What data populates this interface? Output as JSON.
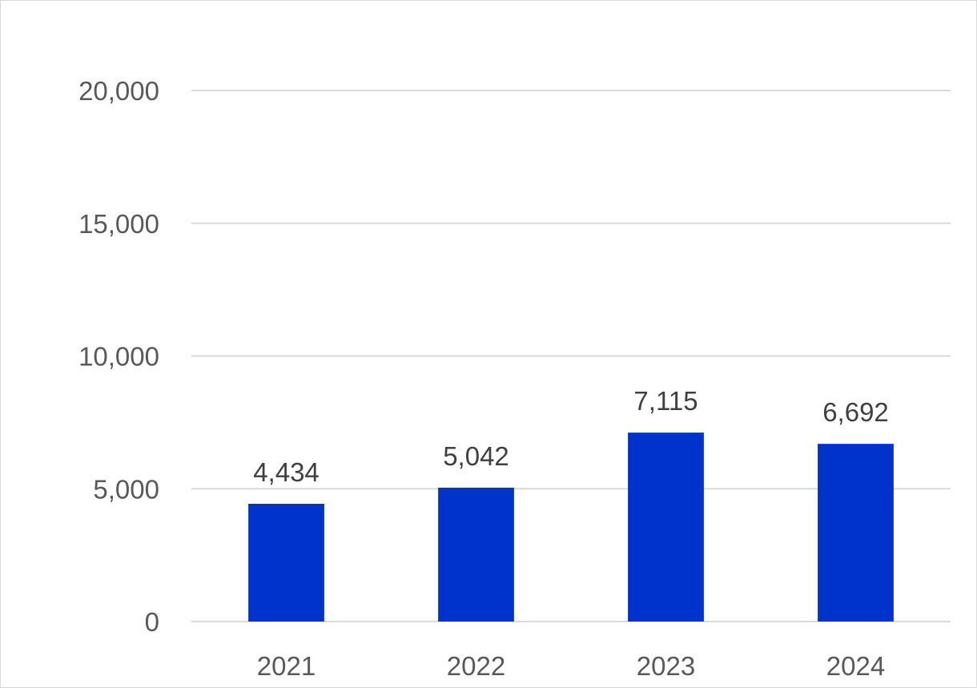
{
  "chart_data": {
    "type": "bar",
    "title": "",
    "xlabel": "",
    "ylabel": "",
    "categories": [
      "2021",
      "2022",
      "2023",
      "2024"
    ],
    "values": [
      4434,
      5042,
      7115,
      6692
    ],
    "value_labels": [
      "4,434",
      "5,042",
      "7,115",
      "6,692"
    ],
    "ylim": [
      0,
      20000
    ],
    "yticks": [
      0,
      5000,
      10000,
      15000,
      20000
    ],
    "ytick_labels": [
      "0",
      "5,000",
      "10,000",
      "15,000",
      "20,000"
    ],
    "grid": true,
    "legend": "none",
    "colors": {
      "bar": "#0033CC",
      "grid": "#d9d9d9",
      "axis_text": "#595959",
      "data_label_text": "#404040"
    }
  }
}
